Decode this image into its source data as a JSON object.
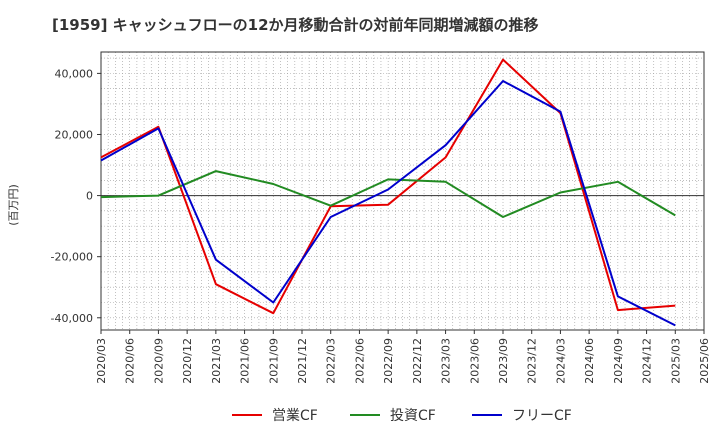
{
  "title": "[1959]  キャッシュフローの12か月移動合計の対前年同期増減額の推移",
  "chart_data": {
    "type": "line",
    "ylabel": "(百万円)",
    "xlabel": "",
    "x": [
      "2020/03",
      "2020/06",
      "2020/09",
      "2020/12",
      "2021/03",
      "2021/06",
      "2021/09",
      "2021/12",
      "2022/03",
      "2022/06",
      "2022/09",
      "2022/12",
      "2023/03",
      "2023/06",
      "2023/09",
      "2023/12",
      "2024/03",
      "2024/06",
      "2024/09",
      "2024/12",
      "2025/03",
      "2025/06"
    ],
    "ylim": [
      -44000,
      47000
    ],
    "yticks": [
      40000,
      20000,
      0,
      -20000,
      -40000
    ],
    "ytick_labels": [
      "40,000",
      "20,000",
      "0",
      "-20,000",
      "-40,000"
    ],
    "grid": true,
    "legend_position": "bottom",
    "series": [
      {
        "name": "営業CF",
        "color": "#e60000",
        "values": [
          12500,
          null,
          22500,
          null,
          -29000,
          null,
          -38500,
          null,
          -3500,
          null,
          -3000,
          null,
          12500,
          null,
          44500,
          null,
          27000,
          null,
          -37500,
          null,
          -36000,
          null
        ]
      },
      {
        "name": "投資CF",
        "color": "#228b22",
        "values": [
          -500,
          null,
          0,
          null,
          8000,
          null,
          3800,
          null,
          -3300,
          null,
          5300,
          null,
          4500,
          null,
          -7000,
          null,
          1000,
          null,
          4500,
          null,
          -6500,
          null
        ]
      },
      {
        "name": "フリーCF",
        "color": "#0000cc",
        "values": [
          11500,
          null,
          22000,
          null,
          -21000,
          null,
          -35000,
          null,
          -7000,
          null,
          2000,
          null,
          16500,
          null,
          37500,
          null,
          27500,
          null,
          -33000,
          null,
          -42500,
          null
        ]
      }
    ]
  }
}
